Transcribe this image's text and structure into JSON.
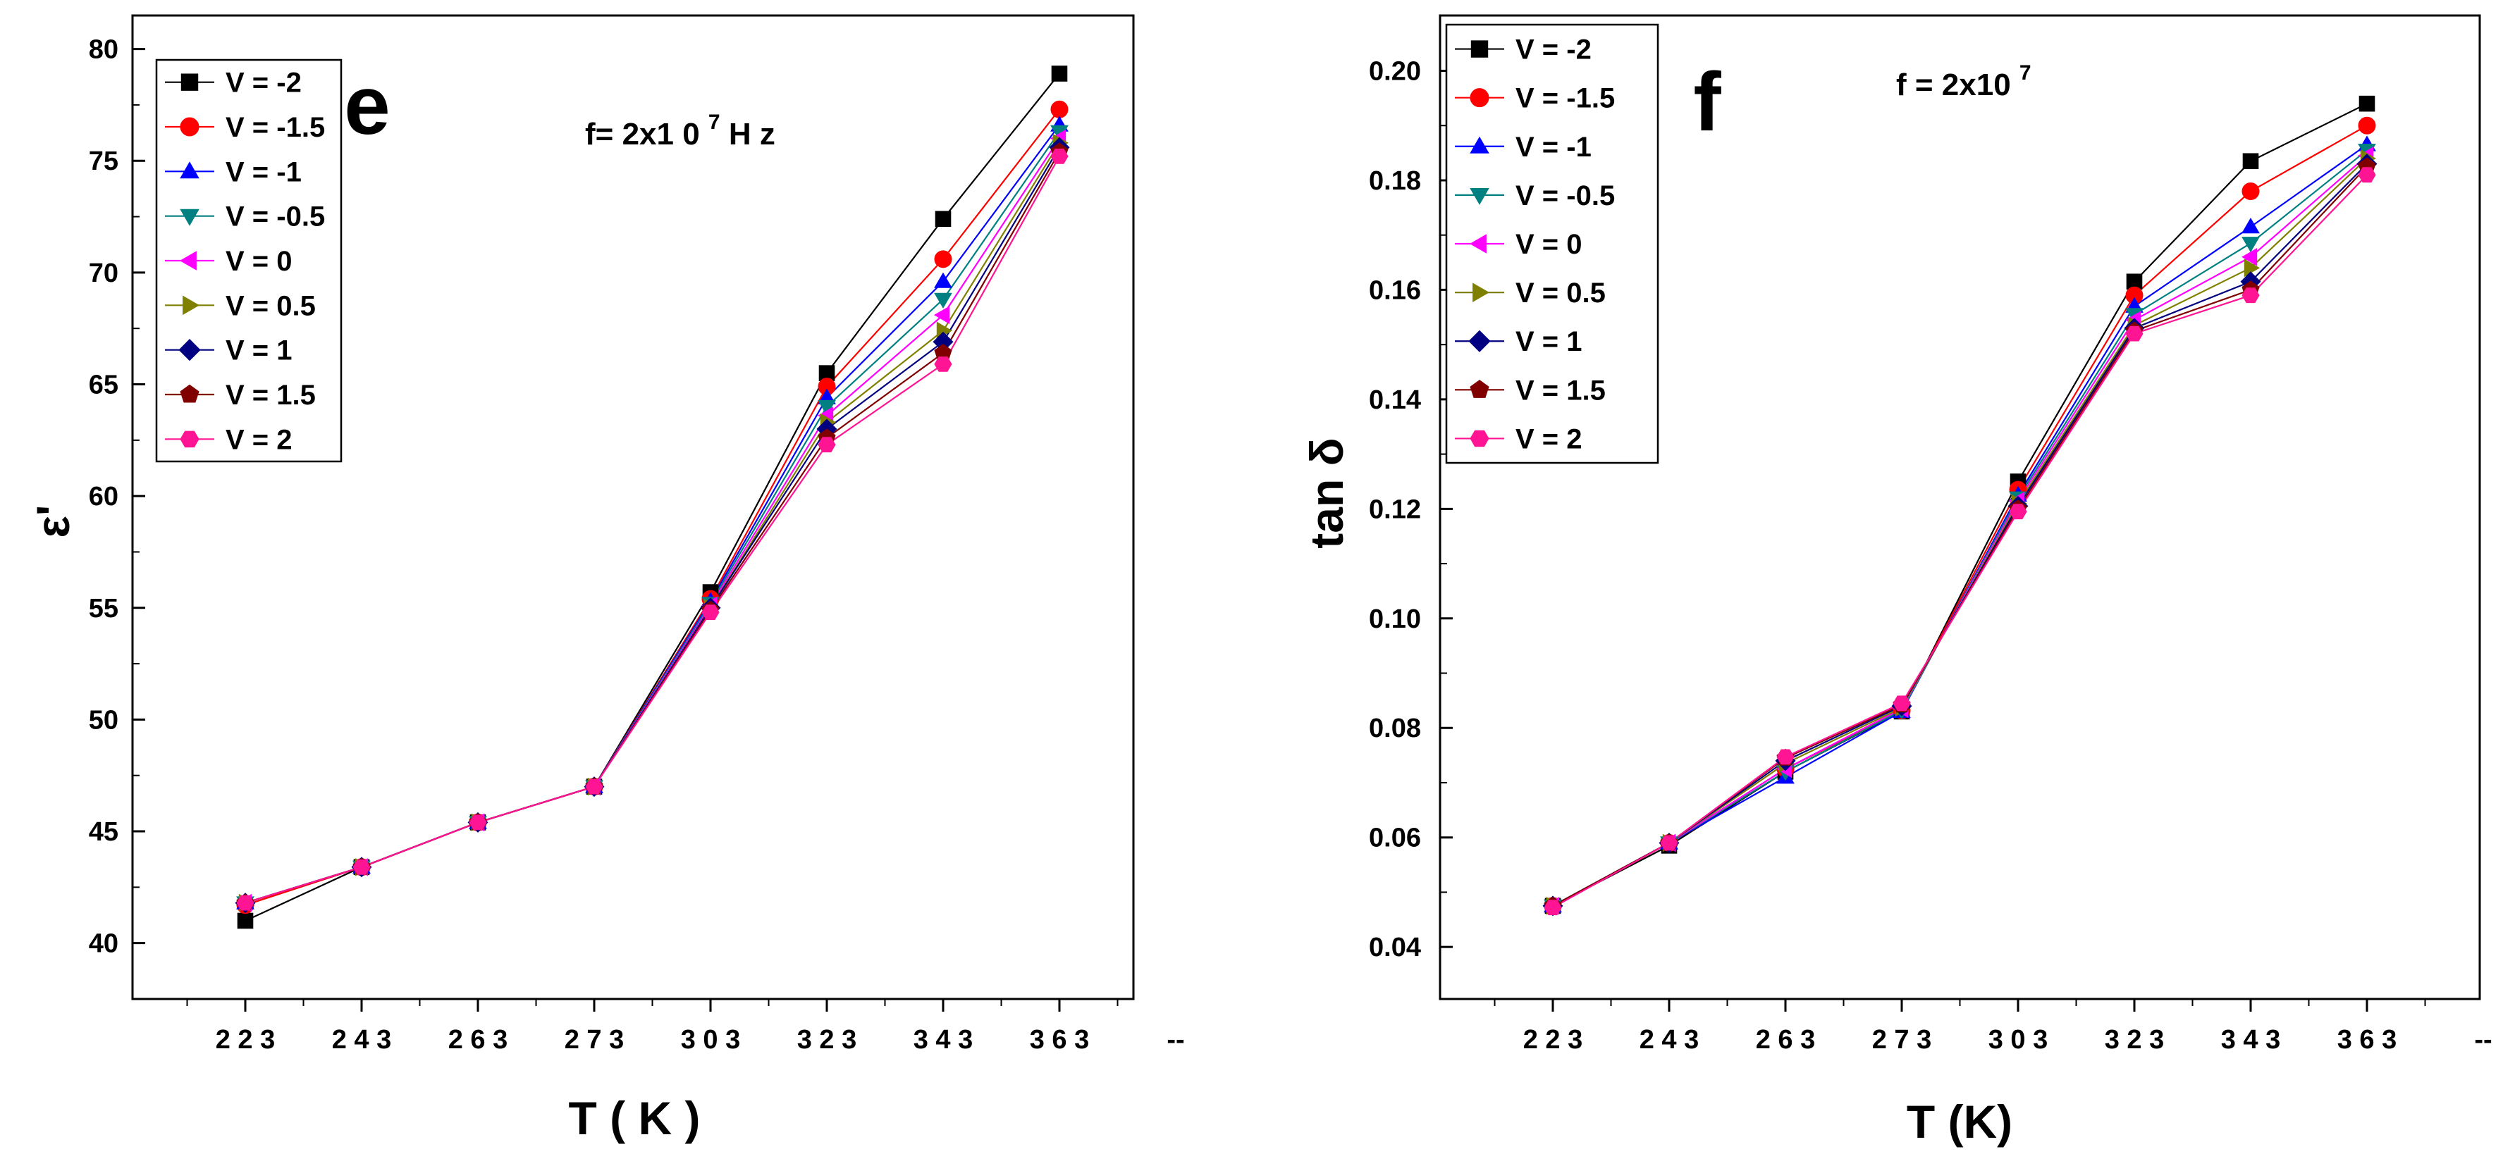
{
  "chart_data": [
    {
      "type": "line",
      "panel_letter": "e",
      "annotation": "f= 2x1 0 ",
      "annotation_sup": "7",
      "annotation_suffix": " H z",
      "xlabel": "T  ( K )",
      "ylabel": "ε'",
      "categories": [
        "2 2 3",
        "2 4 3",
        "2 6 3",
        "2 7 3",
        "3 0 3",
        "3 2 3",
        "3 4 3",
        "3 6 3"
      ],
      "x_extra_tick": "--",
      "ylim": [
        37.5,
        81.5
      ],
      "yticks": [
        40,
        45,
        50,
        55,
        60,
        65,
        70,
        75,
        80
      ],
      "ytick_labels": [
        "40",
        "45",
        "50",
        "55",
        "60",
        "65",
        "70",
        "75",
        "80"
      ],
      "legend_position": "top-left",
      "series": [
        {
          "name": "V = -2",
          "color": "#000000",
          "marker": "square",
          "values": [
            41.0,
            43.4,
            45.4,
            47.0,
            55.7,
            65.5,
            72.4,
            78.9
          ]
        },
        {
          "name": "V = -1.5",
          "color": "#ff0000",
          "marker": "circle",
          "values": [
            41.7,
            43.4,
            45.4,
            47.0,
            55.4,
            64.9,
            70.6,
            77.3
          ]
        },
        {
          "name": "V = -1",
          "color": "#0000ff",
          "marker": "triangle-up",
          "values": [
            41.8,
            43.4,
            45.4,
            47.0,
            55.3,
            64.4,
            69.6,
            76.6
          ]
        },
        {
          "name": "V = -0.5",
          "color": "#008080",
          "marker": "triangle-down",
          "values": [
            41.8,
            43.4,
            45.4,
            47.0,
            55.2,
            64.0,
            68.8,
            76.3
          ]
        },
        {
          "name": "V = 0",
          "color": "#ff00ff",
          "marker": "triangle-left",
          "values": [
            41.8,
            43.4,
            45.4,
            47.0,
            55.1,
            63.6,
            68.1,
            76.0
          ]
        },
        {
          "name": "V = 0.5",
          "color": "#808000",
          "marker": "triangle-right",
          "values": [
            41.8,
            43.4,
            45.4,
            47.0,
            55.0,
            63.3,
            67.4,
            75.8
          ]
        },
        {
          "name": "V = 1",
          "color": "#000080",
          "marker": "diamond",
          "values": [
            41.8,
            43.4,
            45.4,
            47.0,
            55.0,
            63.0,
            66.9,
            75.6
          ]
        },
        {
          "name": "V = 1.5",
          "color": "#800000",
          "marker": "pentagon",
          "values": [
            41.8,
            43.4,
            45.4,
            47.0,
            54.9,
            62.6,
            66.4,
            75.4
          ]
        },
        {
          "name": "V = 2",
          "color": "#ff1493",
          "marker": "hexagon",
          "values": [
            41.8,
            43.4,
            45.4,
            47.0,
            54.8,
            62.3,
            65.9,
            75.2
          ]
        }
      ]
    },
    {
      "type": "line",
      "panel_letter": "f",
      "annotation": "f  =  2x10 ",
      "annotation_sup": "7",
      "annotation_suffix": "",
      "xlabel": "T (K)",
      "ylabel": "tan δ",
      "categories": [
        "2 2 3",
        "2 4 3",
        "2 6 3",
        "2 7 3",
        "3 0 3",
        "3 2 3",
        "3 4 3",
        "3 6 3"
      ],
      "x_extra_tick": "--",
      "ylim": [
        0.0305,
        0.2101
      ],
      "yticks": [
        0.04,
        0.06,
        0.08,
        0.1,
        0.12,
        0.14,
        0.16,
        0.18,
        0.2
      ],
      "ytick_labels": [
        "0.04",
        "0.06",
        "0.08",
        "0.10",
        "0.12",
        "0.14",
        "0.16",
        "0.18",
        "0.20"
      ],
      "legend_position": "top-left",
      "series": [
        {
          "name": "V = -2",
          "color": "#000000",
          "marker": "square",
          "values": [
            0.0475,
            0.0585,
            0.072,
            0.083,
            0.125,
            0.1615,
            0.1835,
            0.194
          ]
        },
        {
          "name": "V = -1.5",
          "color": "#ff0000",
          "marker": "circle",
          "values": [
            0.0475,
            0.059,
            0.0725,
            0.0832,
            0.1235,
            0.159,
            0.178,
            0.19
          ]
        },
        {
          "name": "V = -1",
          "color": "#0000ff",
          "marker": "triangle-up",
          "values": [
            0.0475,
            0.059,
            0.071,
            0.083,
            0.1225,
            0.157,
            0.1715,
            0.1865
          ]
        },
        {
          "name": "V = -0.5",
          "color": "#008080",
          "marker": "triangle-down",
          "values": [
            0.0475,
            0.059,
            0.072,
            0.0832,
            0.122,
            0.1555,
            0.1685,
            0.1855
          ]
        },
        {
          "name": "V = 0",
          "color": "#ff00ff",
          "marker": "triangle-left",
          "values": [
            0.0475,
            0.059,
            0.0725,
            0.0835,
            0.1215,
            0.1545,
            0.166,
            0.1845
          ]
        },
        {
          "name": "V = 0.5",
          "color": "#808000",
          "marker": "triangle-right",
          "values": [
            0.0475,
            0.059,
            0.0735,
            0.0837,
            0.121,
            0.1535,
            0.164,
            0.184
          ]
        },
        {
          "name": "V = 1",
          "color": "#000080",
          "marker": "diamond",
          "values": [
            0.0475,
            0.059,
            0.074,
            0.084,
            0.1205,
            0.153,
            0.1615,
            0.183
          ]
        },
        {
          "name": "V = 1.5",
          "color": "#800000",
          "marker": "pentagon",
          "values": [
            0.0475,
            0.059,
            0.0745,
            0.0842,
            0.12,
            0.1525,
            0.16,
            0.1825
          ]
        },
        {
          "name": "V = 2",
          "color": "#ff1493",
          "marker": "hexagon",
          "values": [
            0.0472,
            0.059,
            0.0747,
            0.0845,
            0.1195,
            0.152,
            0.159,
            0.181
          ]
        }
      ]
    }
  ]
}
